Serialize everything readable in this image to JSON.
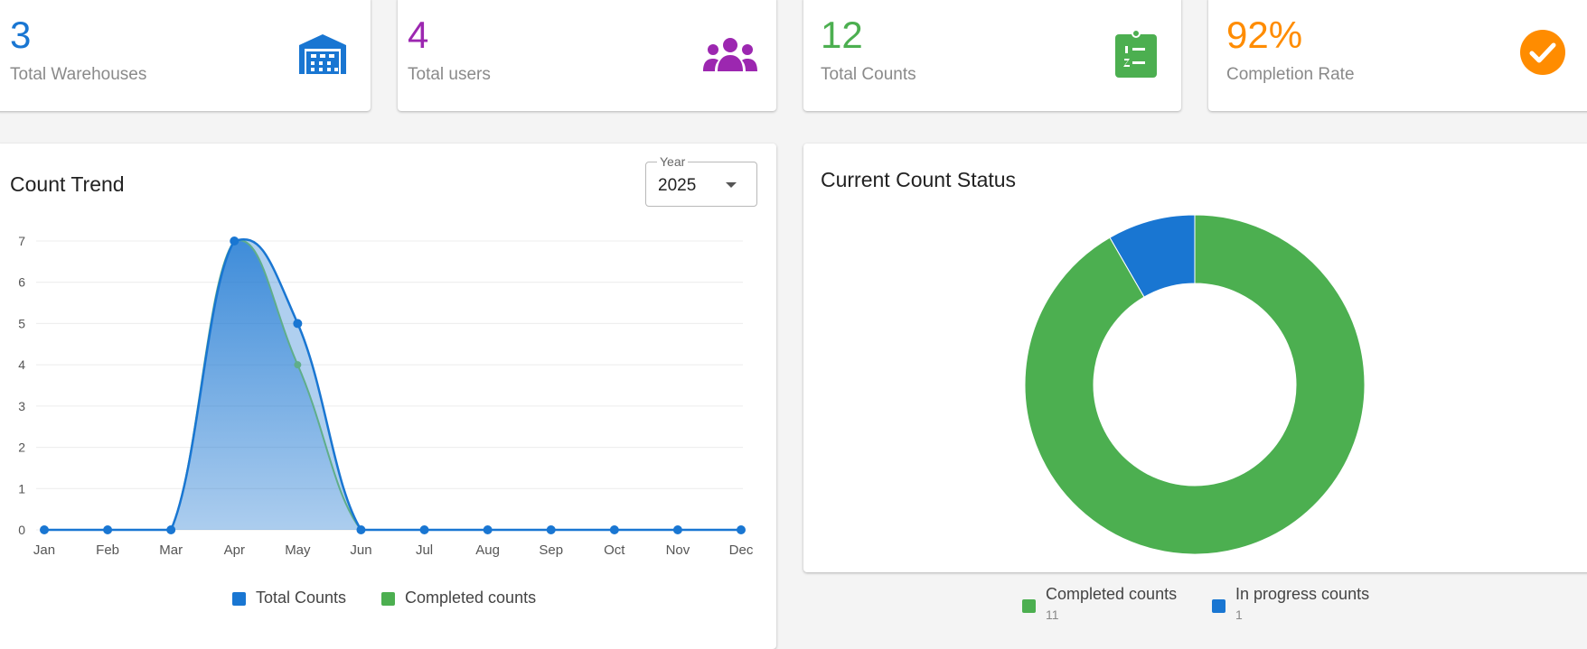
{
  "stats": [
    {
      "value": "3",
      "label": "Total Warehouses",
      "color": "#1976d2",
      "icon": "warehouse-icon"
    },
    {
      "value": "4",
      "label": "Total users",
      "color": "#9c27b0",
      "icon": "users-icon"
    },
    {
      "value": "12",
      "label": "Total Counts",
      "color": "#4caf50",
      "icon": "clipboard-list-icon"
    },
    {
      "value": "92%",
      "label": "Completion Rate",
      "color": "#ff8c00",
      "icon": "check-circle-icon"
    }
  ],
  "trend": {
    "title": "Count Trend",
    "year_label": "Year",
    "year_value": "2025",
    "legend": [
      {
        "label": "Total Counts",
        "color": "#1976d2"
      },
      {
        "label": "Completed counts",
        "color": "#4caf50"
      }
    ]
  },
  "status": {
    "title": "Current Count Status",
    "legend": [
      {
        "label": "Completed counts",
        "value": "11",
        "color": "#4caf50"
      },
      {
        "label": "In progress counts",
        "value": "1",
        "color": "#1976d2"
      }
    ]
  },
  "chart_data": [
    {
      "type": "area",
      "title": "Count Trend",
      "categories": [
        "Jan",
        "Feb",
        "Mar",
        "Apr",
        "May",
        "Jun",
        "Jul",
        "Aug",
        "Sep",
        "Oct",
        "Nov",
        "Dec"
      ],
      "series": [
        {
          "name": "Total Counts",
          "values": [
            0,
            0,
            0,
            7,
            5,
            0,
            0,
            0,
            0,
            0,
            0,
            0
          ],
          "color": "#1976d2"
        },
        {
          "name": "Completed counts",
          "values": [
            0,
            0,
            0,
            7,
            4,
            0,
            0,
            0,
            0,
            0,
            0,
            0
          ],
          "color": "#4caf50"
        }
      ],
      "ylim": [
        0,
        7
      ],
      "yticks": [
        "0",
        "1",
        "2",
        "3",
        "4",
        "5",
        "6",
        "7"
      ],
      "grid": true,
      "legend": "bottom"
    },
    {
      "type": "pie",
      "title": "Current Count Status",
      "labels": [
        "Completed counts",
        "In progress counts"
      ],
      "values": [
        11,
        1
      ],
      "colors": [
        "#4caf50",
        "#1976d2"
      ],
      "donut": true,
      "legend": "bottom"
    }
  ]
}
